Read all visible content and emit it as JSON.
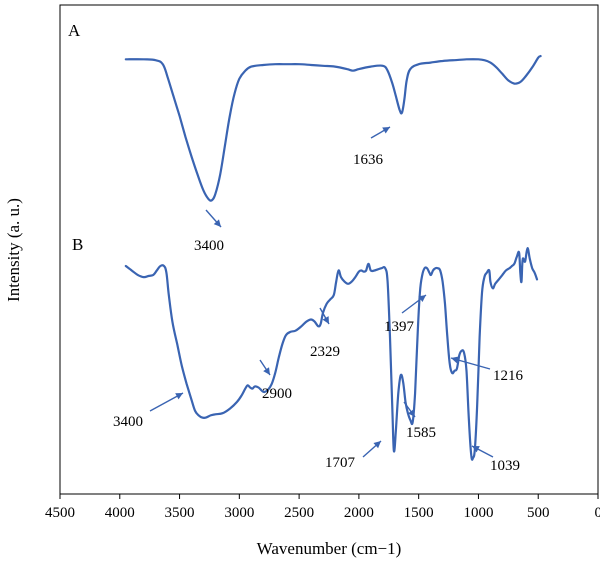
{
  "chart_data": {
    "type": "line",
    "xlabel": "Wavenumber (cm−1)",
    "ylabel": "Intensity (a. u.)",
    "xlim": [
      4500,
      0
    ],
    "x_reversed": true,
    "x_ticks": [
      4500,
      4000,
      3500,
      3000,
      2500,
      2000,
      1500,
      1000,
      500,
      0
    ],
    "grid": false,
    "series": [
      {
        "name": "A",
        "color": "#3a64b2",
        "points": [
          [
            3950,
            0.93
          ],
          [
            3800,
            0.93
          ],
          [
            3700,
            0.925
          ],
          [
            3640,
            0.9
          ],
          [
            3600,
            0.82
          ],
          [
            3550,
            0.7
          ],
          [
            3500,
            0.58
          ],
          [
            3450,
            0.45
          ],
          [
            3400,
            0.33
          ],
          [
            3350,
            0.22
          ],
          [
            3300,
            0.12
          ],
          [
            3260,
            0.07
          ],
          [
            3230,
            0.06
          ],
          [
            3200,
            0.1
          ],
          [
            3160,
            0.22
          ],
          [
            3120,
            0.4
          ],
          [
            3080,
            0.58
          ],
          [
            3040,
            0.72
          ],
          [
            3000,
            0.81
          ],
          [
            2950,
            0.86
          ],
          [
            2900,
            0.885
          ],
          [
            2800,
            0.895
          ],
          [
            2700,
            0.9
          ],
          [
            2600,
            0.9
          ],
          [
            2500,
            0.9
          ],
          [
            2400,
            0.895
          ],
          [
            2300,
            0.89
          ],
          [
            2200,
            0.885
          ],
          [
            2100,
            0.87
          ],
          [
            2050,
            0.86
          ],
          [
            2000,
            0.87
          ],
          [
            1900,
            0.885
          ],
          [
            1800,
            0.89
          ],
          [
            1760,
            0.86
          ],
          [
            1720,
            0.78
          ],
          [
            1690,
            0.7
          ],
          [
            1660,
            0.62
          ],
          [
            1640,
            0.6
          ],
          [
            1620,
            0.68
          ],
          [
            1600,
            0.8
          ],
          [
            1570,
            0.87
          ],
          [
            1500,
            0.9
          ],
          [
            1400,
            0.91
          ],
          [
            1300,
            0.92
          ],
          [
            1200,
            0.925
          ],
          [
            1100,
            0.93
          ],
          [
            1000,
            0.93
          ],
          [
            950,
            0.925
          ],
          [
            900,
            0.91
          ],
          [
            850,
            0.88
          ],
          [
            800,
            0.84
          ],
          [
            750,
            0.8
          ],
          [
            700,
            0.78
          ],
          [
            650,
            0.79
          ],
          [
            600,
            0.83
          ],
          [
            550,
            0.88
          ],
          [
            500,
            0.94
          ],
          [
            480,
            0.95
          ]
        ]
      },
      {
        "name": "B",
        "color": "#3a64b2",
        "points": [
          [
            3950,
            0.87
          ],
          [
            3900,
            0.85
          ],
          [
            3850,
            0.83
          ],
          [
            3800,
            0.82
          ],
          [
            3760,
            0.825
          ],
          [
            3720,
            0.83
          ],
          [
            3690,
            0.85
          ],
          [
            3660,
            0.87
          ],
          [
            3630,
            0.87
          ],
          [
            3610,
            0.84
          ],
          [
            3590,
            0.74
          ],
          [
            3560,
            0.62
          ],
          [
            3520,
            0.52
          ],
          [
            3480,
            0.42
          ],
          [
            3440,
            0.34
          ],
          [
            3400,
            0.27
          ],
          [
            3370,
            0.22
          ],
          [
            3340,
            0.2
          ],
          [
            3310,
            0.19
          ],
          [
            3280,
            0.19
          ],
          [
            3240,
            0.2
          ],
          [
            3200,
            0.205
          ],
          [
            3140,
            0.21
          ],
          [
            3080,
            0.23
          ],
          [
            3020,
            0.26
          ],
          [
            2980,
            0.29
          ],
          [
            2950,
            0.32
          ],
          [
            2930,
            0.335
          ],
          [
            2910,
            0.325
          ],
          [
            2890,
            0.32
          ],
          [
            2870,
            0.33
          ],
          [
            2840,
            0.325
          ],
          [
            2810,
            0.31
          ],
          [
            2790,
            0.305
          ],
          [
            2760,
            0.315
          ],
          [
            2730,
            0.34
          ],
          [
            2700,
            0.39
          ],
          [
            2670,
            0.46
          ],
          [
            2640,
            0.52
          ],
          [
            2610,
            0.56
          ],
          [
            2570,
            0.575
          ],
          [
            2530,
            0.58
          ],
          [
            2480,
            0.6
          ],
          [
            2440,
            0.62
          ],
          [
            2400,
            0.63
          ],
          [
            2370,
            0.62
          ],
          [
            2340,
            0.6
          ],
          [
            2320,
            0.61
          ],
          [
            2300,
            0.66
          ],
          [
            2270,
            0.7
          ],
          [
            2240,
            0.72
          ],
          [
            2210,
            0.74
          ],
          [
            2190,
            0.8
          ],
          [
            2170,
            0.85
          ],
          [
            2150,
            0.82
          ],
          [
            2120,
            0.8
          ],
          [
            2090,
            0.79
          ],
          [
            2060,
            0.8
          ],
          [
            2030,
            0.82
          ],
          [
            2000,
            0.845
          ],
          [
            1980,
            0.85
          ],
          [
            1960,
            0.845
          ],
          [
            1940,
            0.85
          ],
          [
            1920,
            0.88
          ],
          [
            1900,
            0.85
          ],
          [
            1870,
            0.85
          ],
          [
            1840,
            0.855
          ],
          [
            1810,
            0.86
          ],
          [
            1780,
            0.86
          ],
          [
            1760,
            0.8
          ],
          [
            1740,
            0.55
          ],
          [
            1720,
            0.22
          ],
          [
            1707,
            0.04
          ],
          [
            1690,
            0.14
          ],
          [
            1670,
            0.3
          ],
          [
            1650,
            0.38
          ],
          [
            1630,
            0.35
          ],
          [
            1610,
            0.26
          ],
          [
            1590,
            0.21
          ],
          [
            1570,
            0.18
          ],
          [
            1550,
            0.17
          ],
          [
            1530,
            0.3
          ],
          [
            1510,
            0.55
          ],
          [
            1490,
            0.75
          ],
          [
            1470,
            0.83
          ],
          [
            1450,
            0.86
          ],
          [
            1430,
            0.86
          ],
          [
            1410,
            0.84
          ],
          [
            1397,
            0.83
          ],
          [
            1380,
            0.85
          ],
          [
            1360,
            0.86
          ],
          [
            1340,
            0.86
          ],
          [
            1320,
            0.85
          ],
          [
            1300,
            0.8
          ],
          [
            1280,
            0.7
          ],
          [
            1260,
            0.55
          ],
          [
            1240,
            0.43
          ],
          [
            1220,
            0.39
          ],
          [
            1200,
            0.4
          ],
          [
            1180,
            0.41
          ],
          [
            1160,
            0.47
          ],
          [
            1140,
            0.49
          ],
          [
            1120,
            0.48
          ],
          [
            1100,
            0.4
          ],
          [
            1080,
            0.18
          ],
          [
            1060,
            0.02
          ],
          [
            1045,
            0.01
          ],
          [
            1030,
            0.05
          ],
          [
            1010,
            0.25
          ],
          [
            990,
            0.55
          ],
          [
            970,
            0.75
          ],
          [
            950,
            0.82
          ],
          [
            930,
            0.84
          ],
          [
            910,
            0.85
          ],
          [
            900,
            0.8
          ],
          [
            880,
            0.77
          ],
          [
            860,
            0.79
          ],
          [
            830,
            0.81
          ],
          [
            800,
            0.83
          ],
          [
            770,
            0.85
          ],
          [
            740,
            0.86
          ],
          [
            720,
            0.87
          ],
          [
            700,
            0.88
          ],
          [
            680,
            0.91
          ],
          [
            660,
            0.93
          ],
          [
            650,
            0.84
          ],
          [
            640,
            0.8
          ],
          [
            630,
            0.9
          ],
          [
            610,
            0.89
          ],
          [
            590,
            0.95
          ],
          [
            570,
            0.9
          ],
          [
            550,
            0.86
          ],
          [
            530,
            0.84
          ],
          [
            510,
            0.81
          ]
        ]
      }
    ],
    "annotations": [
      {
        "text": "1636",
        "x": 1636,
        "series": "A"
      },
      {
        "text": "3400",
        "x": 3400,
        "series": "A"
      },
      {
        "text": "3400",
        "x": 3400,
        "series": "B"
      },
      {
        "text": "2900",
        "x": 2900,
        "series": "B"
      },
      {
        "text": "2329",
        "x": 2329,
        "series": "B"
      },
      {
        "text": "1397",
        "x": 1397,
        "series": "B"
      },
      {
        "text": "1216",
        "x": 1216,
        "series": "B"
      },
      {
        "text": "1707",
        "x": 1707,
        "series": "B"
      },
      {
        "text": "1585",
        "x": 1585,
        "series": "B"
      },
      {
        "text": "1039",
        "x": 1039,
        "series": "B"
      }
    ]
  }
}
